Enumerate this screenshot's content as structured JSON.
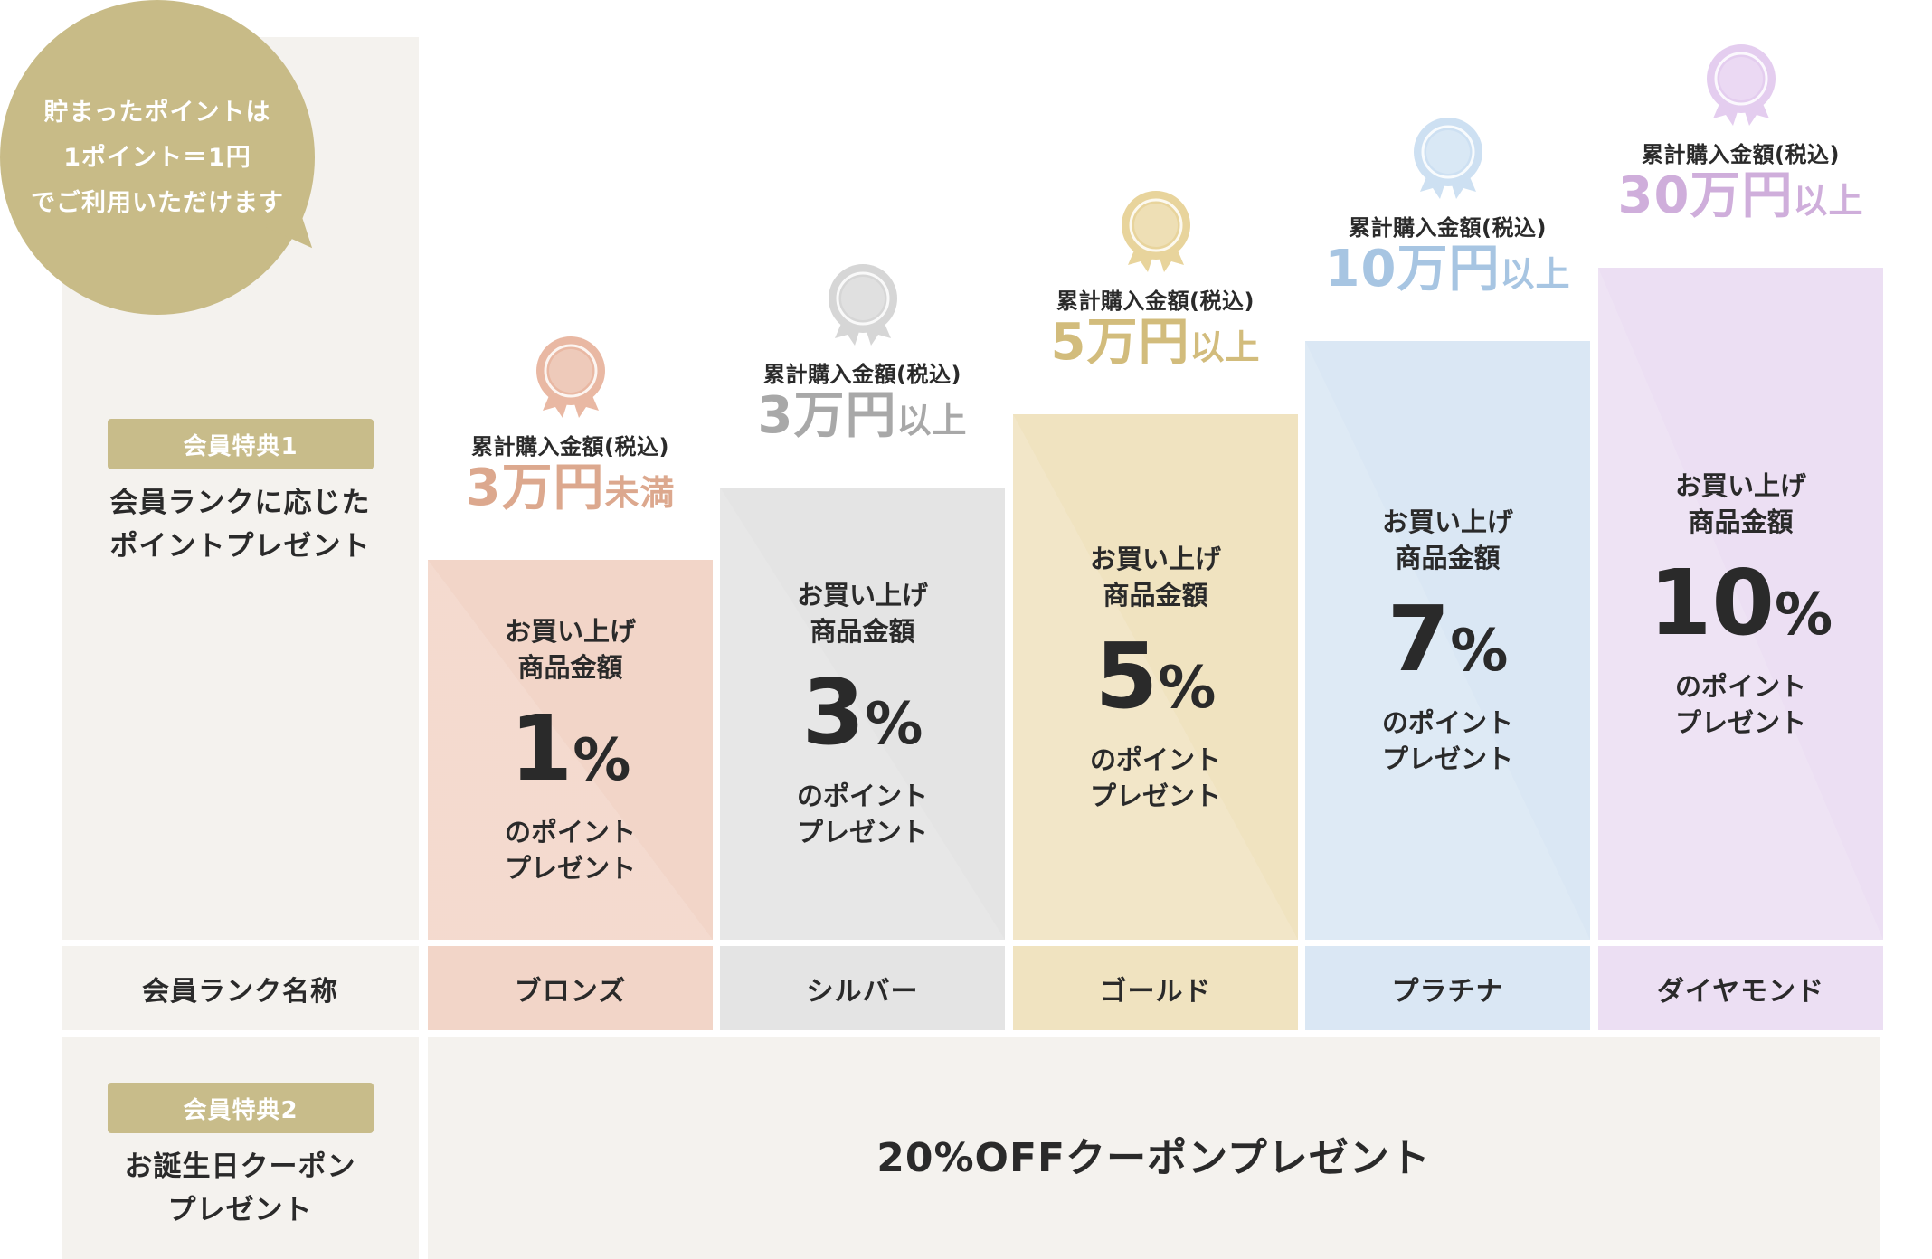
{
  "bubble": {
    "lines": [
      "貯まったポイントは",
      "1ポイント＝1円",
      "でご利用いただけます"
    ]
  },
  "benefit1": {
    "tag": "会員特典1",
    "desc_lines": [
      "会員ランクに応じた",
      "ポイントプレゼント"
    ]
  },
  "rank_name_header": "会員ランク名称",
  "benefit2": {
    "tag": "会員特典2",
    "desc_lines": [
      "お誕生日クーポン",
      "プレゼント"
    ],
    "content": "20%OFFクーポンプレゼント"
  },
  "ranks": [
    {
      "name": "ブロンズ",
      "cum_label": "累計購入金額(税込)",
      "threshold_amount": "3万円",
      "threshold_suffix": "未満",
      "bar_line1": "お買い上げ",
      "bar_line2": "商品金額",
      "rate_num": "1",
      "rate_sym": "%",
      "bar_line3": "のポイント",
      "bar_line4": "プレゼント",
      "colors": {
        "bar": "#f2d5c8",
        "accent": "#dca88e",
        "medal": "#e9b8a3"
      }
    },
    {
      "name": "シルバー",
      "cum_label": "累計購入金額(税込)",
      "threshold_amount": "3万円",
      "threshold_suffix": "以上",
      "bar_line1": "お買い上げ",
      "bar_line2": "商品金額",
      "rate_num": "3",
      "rate_sym": "%",
      "bar_line3": "のポイント",
      "bar_line4": "プレゼント",
      "colors": {
        "bar": "#e4e4e4",
        "accent": "#a8a8a8",
        "medal": "#d6d6d6"
      }
    },
    {
      "name": "ゴールド",
      "cum_label": "累計購入金額(税込)",
      "threshold_amount": "5万円",
      "threshold_suffix": "以上",
      "bar_line1": "お買い上げ",
      "bar_line2": "商品金額",
      "rate_num": "5",
      "rate_sym": "%",
      "bar_line3": "のポイント",
      "bar_line4": "プレゼント",
      "colors": {
        "bar": "#f0e3c0",
        "accent": "#d2bc7c",
        "medal": "#e8d49c"
      }
    },
    {
      "name": "プラチナ",
      "cum_label": "累計購入金額(税込)",
      "threshold_amount": "10万円",
      "threshold_suffix": "以上",
      "bar_line1": "お買い上げ",
      "bar_line2": "商品金額",
      "rate_num": "7",
      "rate_sym": "%",
      "bar_line3": "のポイント",
      "bar_line4": "プレゼント",
      "colors": {
        "bar": "#dae7f4",
        "accent": "#a7c5e2",
        "medal": "#cde0f2"
      }
    },
    {
      "name": "ダイヤモンド",
      "cum_label": "累計購入金額(税込)",
      "threshold_amount": "30万円",
      "threshold_suffix": "以上",
      "bar_line1": "お買い上げ",
      "bar_line2": "商品金額",
      "rate_num": "10",
      "rate_sym": "%",
      "bar_line3": "のポイント",
      "bar_line4": "プレゼント",
      "colors": {
        "bar": "#ecdff3",
        "accent": "#cfaedb",
        "medal": "#e4cdef"
      }
    }
  ]
}
